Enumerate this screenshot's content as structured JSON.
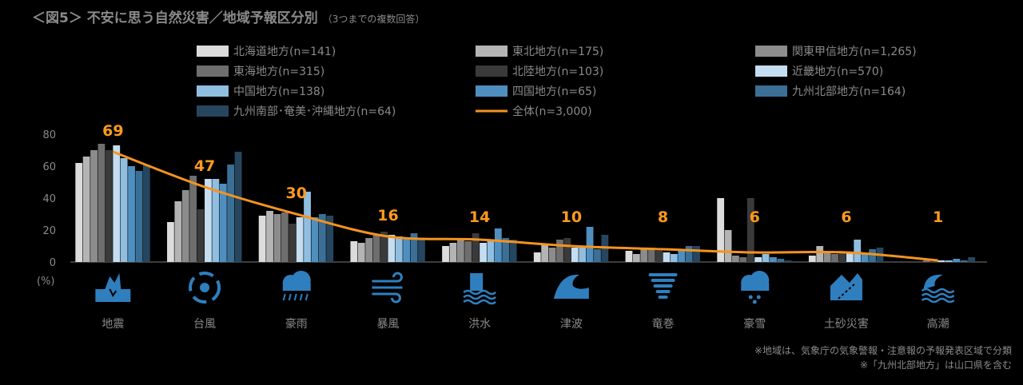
{
  "title": "＜図5＞ 不安に思う自然災害／地域予報区分別",
  "subtitle": "（3つまでの複数回答）",
  "notes": [
    "※地域は、気象庁の気象警報・注意報の予報発表区域で分類",
    "※「九州北部地方」は山口県を含む"
  ],
  "colors": {
    "total_line": "#f5931e",
    "series": [
      "#dcdcdc",
      "#b4b4b4",
      "#8c8c8c",
      "#6e6e6e",
      "#3a3a3a",
      "#c5ddf0",
      "#8fbee0",
      "#4f8fbf",
      "#3b6f96",
      "#26465f"
    ]
  },
  "chart_data": {
    "type": "bar",
    "categories": [
      "地震",
      "台風",
      "豪雨",
      "暴風",
      "洪水",
      "津波",
      "竜巻",
      "豪雪",
      "土砂災害",
      "高潮"
    ],
    "category_icons": [
      "earthquake-icon",
      "typhoon-icon",
      "heavy-rain-icon",
      "storm-wind-icon",
      "flood-icon",
      "tsunami-icon",
      "tornado-icon",
      "heavy-snow-icon",
      "landslide-icon",
      "high-tide-icon"
    ],
    "ylabel": "(%)",
    "ylim": [
      0,
      80
    ],
    "yticks": [
      0,
      20,
      40,
      60,
      80
    ],
    "series": [
      {
        "name": "北海道地方(n=141)",
        "values": [
          62,
          25,
          29,
          13,
          10,
          6,
          7,
          40,
          4,
          0
        ]
      },
      {
        "name": "東北地方(n=175)",
        "values": [
          66,
          38,
          32,
          12,
          12,
          11,
          5,
          20,
          10,
          0
        ]
      },
      {
        "name": "関東甲信地方(n=1,265)",
        "values": [
          70,
          45,
          30,
          15,
          14,
          9,
          9,
          4,
          6,
          0
        ]
      },
      {
        "name": "東海地方(n=315)",
        "values": [
          74,
          54,
          31,
          17,
          13,
          14,
          8,
          3,
          5,
          1
        ]
      },
      {
        "name": "北陸地方(n=103)",
        "values": [
          70,
          33,
          24,
          19,
          18,
          15,
          7,
          40,
          6,
          0
        ]
      },
      {
        "name": "近畿地方(n=570)",
        "values": [
          73,
          52,
          28,
          17,
          12,
          9,
          6,
          3,
          6,
          1
        ]
      },
      {
        "name": "中国地方(n=138)",
        "values": [
          65,
          52,
          44,
          16,
          14,
          10,
          5,
          5,
          14,
          1
        ]
      },
      {
        "name": "四国地方(n=65)",
        "values": [
          60,
          49,
          28,
          15,
          21,
          22,
          8,
          3,
          5,
          2
        ]
      },
      {
        "name": "九州北部地方(n=164)",
        "values": [
          57,
          61,
          30,
          18,
          15,
          8,
          10,
          2,
          8,
          1
        ]
      },
      {
        "name": "九州南部･奄美･沖縄地方(n=64)",
        "values": [
          61,
          69,
          29,
          14,
          14,
          17,
          10,
          1,
          9,
          3
        ]
      }
    ],
    "total": {
      "name": "全体(n=3,000)",
      "values": [
        69,
        47,
        30,
        16,
        14,
        10,
        8,
        6,
        6,
        1
      ]
    },
    "legend_position": "top"
  }
}
